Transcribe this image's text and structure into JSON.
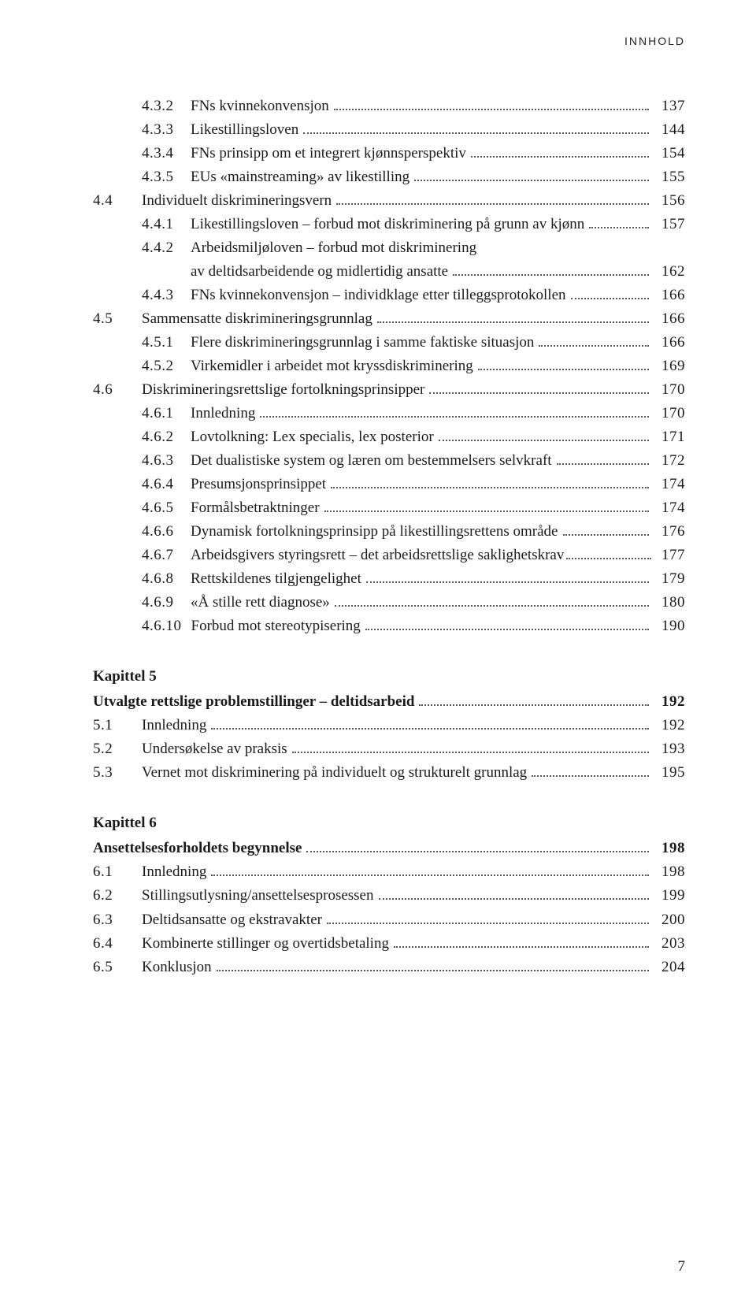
{
  "running_head": "INNHOLD",
  "page_number": "7",
  "entries": [
    {
      "indent": 2,
      "num": "4.3.2",
      "title": "FNs kvinnekonvensjon",
      "page": "137"
    },
    {
      "indent": 2,
      "num": "4.3.3",
      "title": "Likestillingsloven",
      "page": "144"
    },
    {
      "indent": 2,
      "num": "4.3.4",
      "title": "FNs prinsipp om et integrert kjønnsperspektiv",
      "page": "154"
    },
    {
      "indent": 2,
      "num": "4.3.5",
      "title": "EUs «mainstreaming» av likestilling",
      "page": "155"
    },
    {
      "indent": 1,
      "num": "4.4",
      "title": "Individuelt diskrimineringsvern",
      "page": "156"
    },
    {
      "indent": 2,
      "num": "4.4.1",
      "title": "Likestillingsloven – forbud mot diskriminering på grunn av kjønn",
      "page": "157"
    },
    {
      "indent": 2,
      "num": "4.4.2",
      "title": "Arbeidsmiljøloven – forbud mot diskriminering",
      "title_cont": "av deltidsarbeidende og midlertidig ansatte",
      "page": "162"
    },
    {
      "indent": 2,
      "num": "4.4.3",
      "title": "FNs kvinnekonvensjon – individklage etter tilleggsprotokollen",
      "page": "166"
    },
    {
      "indent": 1,
      "num": "4.5",
      "title": "Sammensatte diskrimineringsgrunnlag",
      "page": "166"
    },
    {
      "indent": 2,
      "num": "4.5.1",
      "title": "Flere diskrimineringsgrunnlag i samme faktiske situasjon",
      "page": "166"
    },
    {
      "indent": 2,
      "num": "4.5.2",
      "title": "Virkemidler i arbeidet mot kryssdiskriminering",
      "page": "169"
    },
    {
      "indent": 1,
      "num": "4.6",
      "title": "Diskrimineringsrettslige fortolkningsprinsipper",
      "page": "170"
    },
    {
      "indent": 2,
      "num": "4.6.1",
      "title": "Innledning",
      "page": "170"
    },
    {
      "indent": 2,
      "num": "4.6.2",
      "title": "Lovtolkning: Lex specialis, lex posterior",
      "page": "171"
    },
    {
      "indent": 2,
      "num": "4.6.3",
      "title": "Det dualistiske system og læren om bestemmelsers selvkraft",
      "page": "172"
    },
    {
      "indent": 2,
      "num": "4.6.4",
      "title": "Presumsjonsprinsippet",
      "page": "174"
    },
    {
      "indent": 2,
      "num": "4.6.5",
      "title": "Formålsbetraktninger",
      "page": "174"
    },
    {
      "indent": 2,
      "num": "4.6.6",
      "title": "Dynamisk fortolkningsprinsipp på likestillingsrettens område",
      "page": "176"
    },
    {
      "indent": 2,
      "num": "4.6.7",
      "title": "Arbeidsgivers styringsrett – det arbeidsrettslige saklighetskrav",
      "page": "177",
      "tight": true
    },
    {
      "indent": 2,
      "num": "4.6.8",
      "title": "Rettskildenes tilgjengelighet",
      "page": "179"
    },
    {
      "indent": 2,
      "num": "4.6.9",
      "title": "«Å stille rett diagnose»",
      "page": "180"
    },
    {
      "indent": 2,
      "num": "4.6.10",
      "title": "Forbud mot stereotypisering",
      "page": "190"
    }
  ],
  "chapters": [
    {
      "label": "Kapittel 5",
      "title": "Utvalgte rettslige problemstillinger – deltidsarbeid",
      "page": "192",
      "entries": [
        {
          "indent": 1,
          "num": "5.1",
          "title": "Innledning",
          "page": "192"
        },
        {
          "indent": 1,
          "num": "5.2",
          "title": "Undersøkelse av praksis",
          "page": "193"
        },
        {
          "indent": 1,
          "num": "5.3",
          "title": "Vernet mot diskriminering på individuelt og strukturelt grunnlag",
          "page": "195"
        }
      ]
    },
    {
      "label": "Kapittel 6",
      "title": "Ansettelsesforholdets begynnelse",
      "page": "198",
      "entries": [
        {
          "indent": 1,
          "num": "6.1",
          "title": "Innledning",
          "page": "198"
        },
        {
          "indent": 1,
          "num": "6.2",
          "title": "Stillingsutlysning/ansettelsesprosessen",
          "page": "199"
        },
        {
          "indent": 1,
          "num": "6.3",
          "title": "Deltidsansatte og ekstravakter",
          "page": "200"
        },
        {
          "indent": 1,
          "num": "6.4",
          "title": "Kombinerte stillinger og overtidsbetaling",
          "page": "203"
        },
        {
          "indent": 1,
          "num": "6.5",
          "title": "Konklusjon",
          "page": "204"
        }
      ]
    }
  ]
}
